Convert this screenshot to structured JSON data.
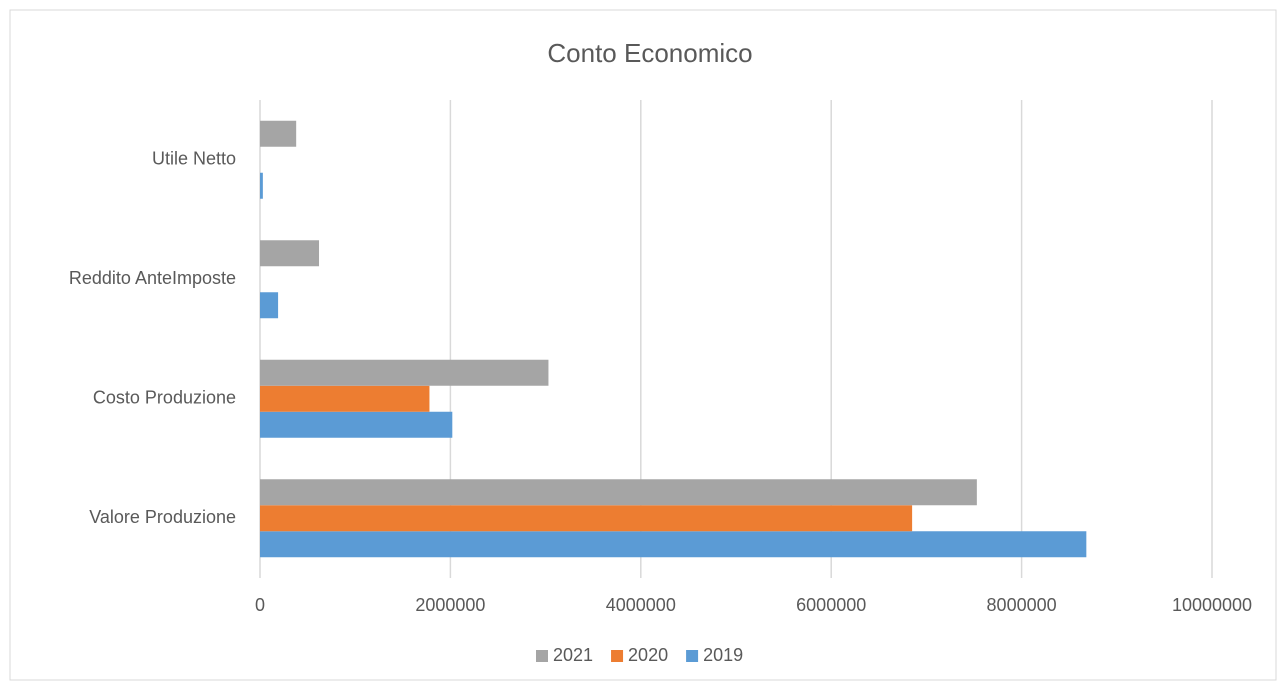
{
  "chart_data": {
    "type": "hbar",
    "title": "Conto Economico",
    "categories": [
      "Valore Produzione",
      "Costo Produzione",
      "Reddito AnteImposte",
      "Utile Netto"
    ],
    "series": [
      {
        "name": "2019",
        "color": "#5b9bd5",
        "values": [
          8680000,
          2020000,
          190000,
          30000
        ]
      },
      {
        "name": "2020",
        "color": "#ed7d31",
        "values": [
          6850000,
          1780000,
          null,
          null
        ]
      },
      {
        "name": "2021",
        "color": "#a5a5a5",
        "values": [
          7530000,
          3030000,
          620000,
          380000
        ]
      }
    ],
    "xlim": [
      0,
      10000000
    ],
    "xticks": [
      0,
      2000000,
      4000000,
      6000000,
      8000000,
      10000000
    ],
    "grid": true,
    "legend": "bottom"
  }
}
